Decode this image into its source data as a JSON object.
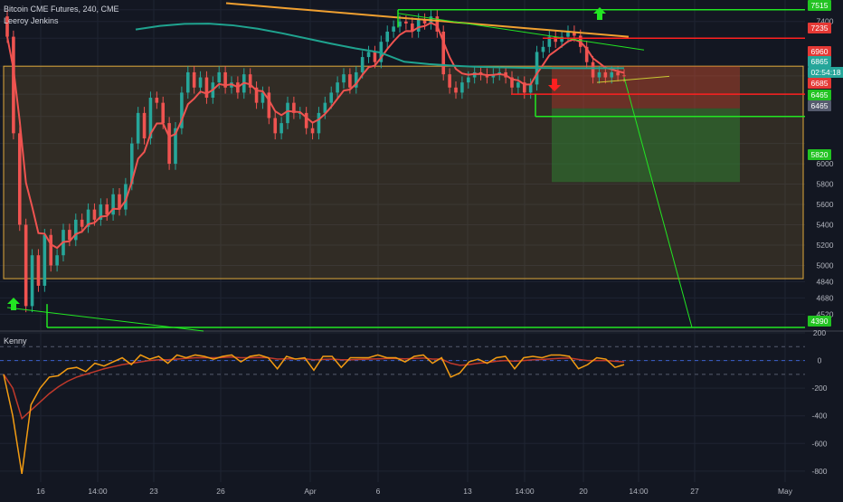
{
  "header": {
    "title": "Bitcoin CME Futures, 240, CME",
    "author": "Leeroy Jenkins"
  },
  "indicator": {
    "name": "Kenny"
  },
  "colors": {
    "background": "#131722",
    "grid": "#1f2433",
    "bull": "#26a69a",
    "bear": "#ef5350",
    "ema": "#ef5350",
    "ma_teal": "#1fa38f",
    "ma_orange": "#f0a030",
    "box": "#e0a93a",
    "green_line": "#22e622",
    "red_line": "#ff2020",
    "risk_zone": "#c0392b",
    "reward_zone": "#2e7d32",
    "osc_fast": "#f39c12",
    "osc_slow": "#c0392b"
  },
  "chart_data": {
    "type": "candlestick",
    "title": "Bitcoin CME Futures, 240, CME",
    "xlabel": "",
    "ylabel": "",
    "y_ticks": [
      4520,
      4680,
      4840,
      5000,
      5200,
      5400,
      5600,
      5800,
      6000,
      6200,
      6465,
      6685,
      6865,
      6960,
      7235,
      7400,
      7515
    ],
    "y_tick_labels": [
      "4520",
      "4680",
      "4840",
      "5000",
      "5200",
      "5400",
      "5600",
      "5800",
      "6000",
      "",
      "",
      "",
      "",
      "",
      "",
      "7400",
      ""
    ],
    "ylim": [
      4390,
      7540
    ],
    "x_tick_labels": [
      "16",
      "14:00",
      "23",
      "26",
      "Apr",
      "6",
      "13",
      "14:00",
      "20",
      "14:00",
      "27",
      "May"
    ],
    "price_tags": [
      {
        "value": "7515",
        "kind": "green"
      },
      {
        "value": "7235",
        "kind": "red"
      },
      {
        "value": "6960",
        "kind": "red"
      },
      {
        "value": "6865",
        "kind": "teal"
      },
      {
        "value": "02:54:18",
        "kind": "teal"
      },
      {
        "value": "6685",
        "kind": "red"
      },
      {
        "value": "6465",
        "kind": "green"
      },
      {
        "value": "6465",
        "kind": "grey"
      },
      {
        "value": "5820",
        "kind": "green"
      },
      {
        "value": "4390",
        "kind": "green"
      }
    ],
    "horizontal_levels": [
      {
        "price": 7515,
        "color": "green"
      },
      {
        "price": 7235,
        "color": "red"
      },
      {
        "price": 6685,
        "color": "red"
      },
      {
        "price": 6465,
        "color": "green"
      },
      {
        "price": 4390,
        "color": "green"
      }
    ],
    "range_box": {
      "top": 6960,
      "bottom": 4870
    },
    "trade_box": {
      "entry": 6865,
      "stop": 6960,
      "target": 5820
    },
    "close_series": [
      7250,
      6300,
      5400,
      4600,
      5100,
      4800,
      5300,
      5000,
      5100,
      5350,
      5250,
      5450,
      5380,
      5550,
      5450,
      5600,
      5500,
      5700,
      5550,
      5800,
      6200,
      6500,
      6250,
      6650,
      6600,
      6400,
      6000,
      6350,
      6700,
      6900,
      6750,
      6850,
      6650,
      6800,
      6900,
      6750,
      6800,
      6700,
      6880,
      6750,
      6600,
      6700,
      6450,
      6300,
      6400,
      6600,
      6500,
      6500,
      6350,
      6300,
      6500,
      6600,
      6700,
      6800,
      6880,
      6750,
      6900,
      7050,
      7100,
      7000,
      7200,
      7300,
      7350,
      7400,
      7380,
      7300,
      7420,
      7380,
      7450,
      7300,
      6880,
      6750,
      6700,
      6800,
      6850,
      6900,
      6880,
      6850,
      6880,
      6900,
      6850,
      6750,
      6800,
      6700,
      6780,
      7100,
      7150,
      7250,
      7200,
      7250,
      7300,
      7260,
      7150,
      7000,
      6850,
      6900,
      6850,
      6900,
      6870,
      6865
    ],
    "oscillator": {
      "name": "Kenny",
      "y_ticks": [
        200,
        0,
        -200,
        -400,
        -600,
        -800
      ],
      "ylim": [
        -860,
        200
      ],
      "dashed_levels": [
        100,
        0,
        -100
      ],
      "fast": [
        -100,
        -400,
        -820,
        -320,
        -200,
        -120,
        -110,
        -60,
        -50,
        -80,
        -20,
        -40,
        -10,
        20,
        -30,
        40,
        10,
        30,
        -20,
        40,
        20,
        40,
        30,
        10,
        30,
        40,
        -10,
        30,
        40,
        20,
        -60,
        30,
        10,
        20,
        -70,
        30,
        30,
        -50,
        20,
        20,
        20,
        40,
        20,
        20,
        -10,
        30,
        40,
        -20,
        20,
        -120,
        -90,
        -10,
        10,
        -20,
        20,
        30,
        -60,
        20,
        30,
        20,
        40,
        40,
        30,
        -60,
        -30,
        20,
        10,
        -50,
        -30
      ],
      "slow": [
        -100,
        -200,
        -420,
        -360,
        -300,
        -240,
        -190,
        -150,
        -120,
        -100,
        -80,
        -60,
        -45,
        -30,
        -20,
        -10,
        0,
        5,
        5,
        10,
        15,
        20,
        20,
        20,
        22,
        25,
        20,
        20,
        22,
        20,
        10,
        12,
        12,
        12,
        5,
        8,
        10,
        5,
        5,
        8,
        10,
        12,
        14,
        14,
        12,
        15,
        18,
        10,
        10,
        -20,
        -35,
        -30,
        -20,
        -15,
        -5,
        0,
        -5,
        0,
        5,
        8,
        12,
        16,
        18,
        8,
        0,
        0,
        0,
        -5,
        -10
      ]
    }
  }
}
